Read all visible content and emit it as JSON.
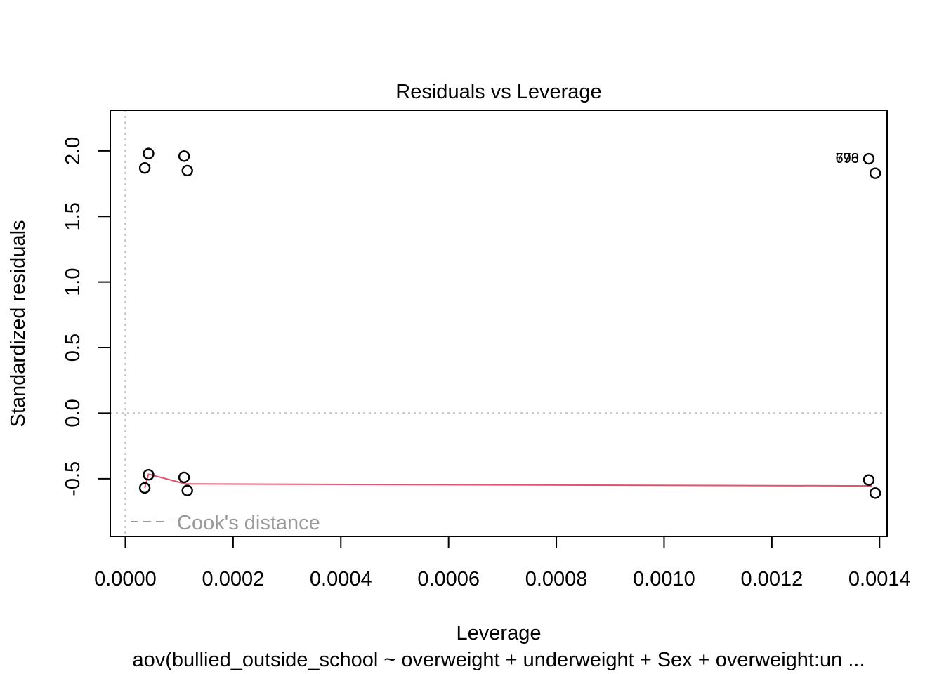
{
  "chart_data": {
    "type": "scatter",
    "title": "Residuals vs Leverage",
    "xlabel": "Leverage",
    "ylabel": "Standardized residuals",
    "caption": "aov(bullied_outside_school ~ overweight + underweight + Sex + overweight:un ...",
    "xlim": [
      -2.8e-05,
      0.001414
    ],
    "ylim": [
      -0.94,
      2.31
    ],
    "x_ticks": [
      0.0,
      0.0002,
      0.0004,
      0.0006,
      0.0008,
      0.001,
      0.0012,
      0.0014
    ],
    "x_tick_labels": [
      "0.0000",
      "0.0002",
      "0.0004",
      "0.0006",
      "0.0008",
      "0.0010",
      "0.0012",
      "0.0014"
    ],
    "y_ticks": [
      -0.5,
      0.0,
      0.5,
      1.0,
      1.5,
      2.0
    ],
    "y_tick_labels": [
      "-0.5",
      "0.0",
      "0.5",
      "1.0",
      "1.5",
      "2.0"
    ],
    "points": [
      {
        "x": 3.6e-05,
        "y": 1.87
      },
      {
        "x": 4.3e-05,
        "y": 1.98
      },
      {
        "x": 0.000109,
        "y": 1.96
      },
      {
        "x": 0.000115,
        "y": 1.85
      },
      {
        "x": 0.00138,
        "y": 1.94
      },
      {
        "x": 0.001392,
        "y": 1.83
      },
      {
        "x": 3.6e-05,
        "y": -0.57
      },
      {
        "x": 4.3e-05,
        "y": -0.47
      },
      {
        "x": 0.000109,
        "y": -0.49
      },
      {
        "x": 0.000115,
        "y": -0.59
      },
      {
        "x": 0.00138,
        "y": -0.51
      },
      {
        "x": 0.001392,
        "y": -0.61
      }
    ],
    "point_labels": [
      {
        "text": "776",
        "x": 0.00134,
        "y": 1.945
      },
      {
        "text": "698",
        "x": 0.00134,
        "y": 1.945
      }
    ],
    "smooth_line": {
      "color": "#DF536B",
      "points": [
        {
          "x": 3.6e-05,
          "y": -0.57
        },
        {
          "x": 4.3e-05,
          "y": -0.465
        },
        {
          "x": 0.000112,
          "y": -0.54
        },
        {
          "x": 0.001386,
          "y": -0.555
        }
      ]
    },
    "reference_lines": {
      "h": 0,
      "v": 0,
      "color": "#BEBEBE",
      "style": "dotted"
    },
    "legend": {
      "position": "bottom-left",
      "label": "Cook's distance",
      "color": "#999999",
      "style": "dashed"
    }
  }
}
